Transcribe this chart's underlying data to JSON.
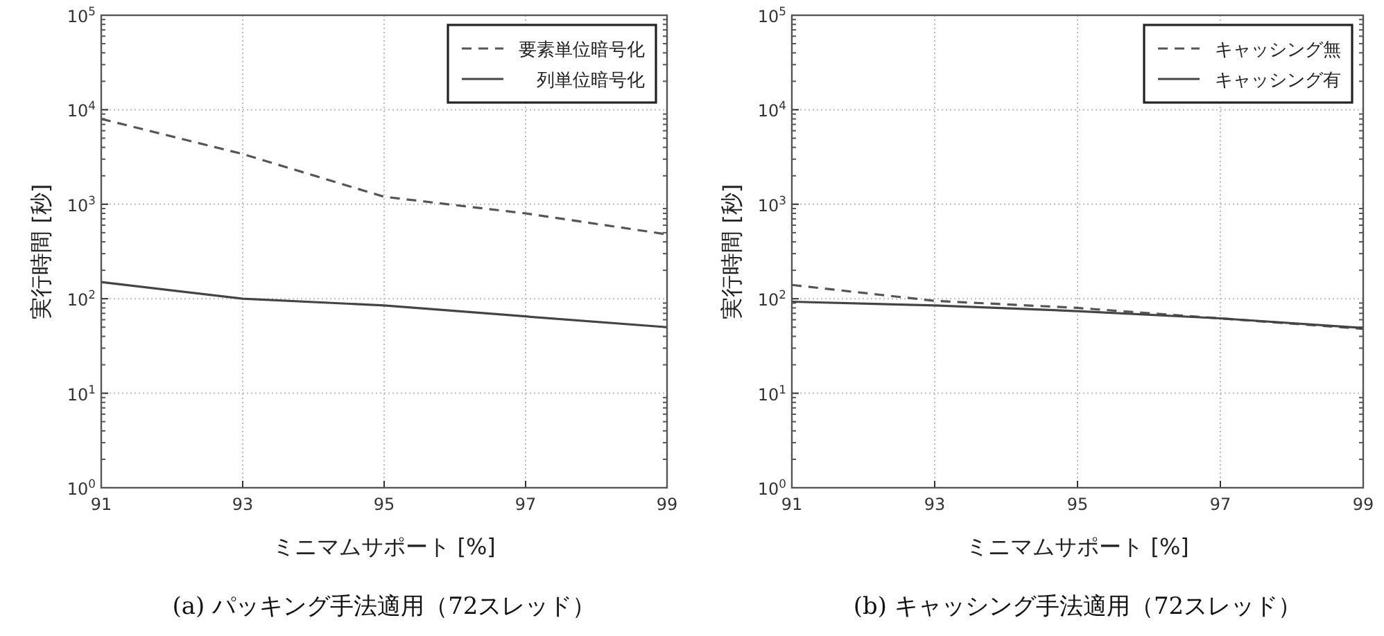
{
  "chart_data": [
    {
      "type": "line",
      "title": "(a) パッキング手法適用（72スレッド）",
      "xlabel": "ミニマムサポート [%]",
      "ylabel": "実行時間 [秒]",
      "log": "y",
      "grid": true,
      "legend": "top right",
      "xlim": [
        91,
        99
      ],
      "xticks": [
        91,
        93,
        95,
        97,
        99
      ],
      "ylim": [
        1,
        100000
      ],
      "yticks": [
        {
          "value": 1,
          "label": "10$^{0}$"
        },
        {
          "value": 10,
          "label": "10$^{1}$"
        },
        {
          "value": 100,
          "label": "10$^{2}$"
        },
        {
          "value": 1000,
          "label": "10$^{3}$"
        },
        {
          "value": 10000,
          "label": "10$^{4}$"
        },
        {
          "value": 100000,
          "label": "10$^{5}$"
        }
      ],
      "x": [
        91,
        93,
        95,
        97,
        99
      ],
      "series": [
        {
          "name": "要素単位暗号化",
          "color": "#555555",
          "line_style": "dashed",
          "values": [
            8000,
            3400,
            1200,
            800,
            480
          ]
        },
        {
          "name": "列単位暗号化",
          "color": "#444444",
          "line_style": "solid",
          "values": [
            150,
            100,
            85,
            65,
            50
          ]
        }
      ]
    },
    {
      "type": "line",
      "title": "(b) キャッシング手法適用（72スレッド）",
      "xlabel": "ミニマムサポート [%]",
      "ylabel": "実行時間 [秒]",
      "log": "y",
      "grid": true,
      "legend": "top right",
      "xlim": [
        91,
        99
      ],
      "xticks": [
        91,
        93,
        95,
        97,
        99
      ],
      "ylim": [
        1,
        100000
      ],
      "yticks": [
        {
          "value": 1,
          "label": "10$^{0}$"
        },
        {
          "value": 10,
          "label": "10$^{1}$"
        },
        {
          "value": 100,
          "label": "10$^{2}$"
        },
        {
          "value": 1000,
          "label": "10$^{3}$"
        },
        {
          "value": 10000,
          "label": "10$^{4}$"
        },
        {
          "value": 100000,
          "label": "10$^{5}$"
        }
      ],
      "x": [
        91,
        93,
        95,
        97,
        99
      ],
      "series": [
        {
          "name": "キャッシング無",
          "color": "#555555",
          "line_style": "dashed",
          "values": [
            140,
            95,
            80,
            62,
            48
          ]
        },
        {
          "name": "キャッシング有",
          "color": "#444444",
          "line_style": "solid",
          "values": [
            93,
            85,
            74,
            62,
            49
          ]
        }
      ]
    }
  ]
}
